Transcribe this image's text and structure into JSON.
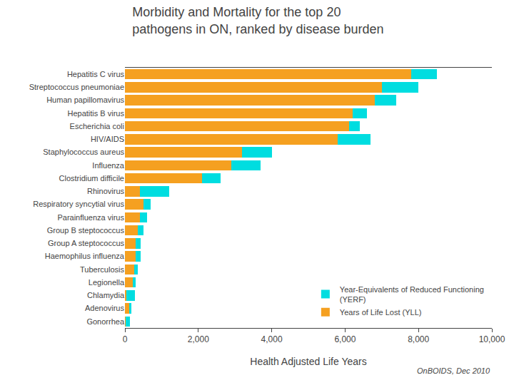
{
  "chart_data": {
    "type": "bar",
    "orientation": "horizontal",
    "stacked": true,
    "title": "Morbidity and Mortality for the top 20\npathogens in ON, ranked by disease burden",
    "xlabel": "Health Adjusted Life Years",
    "categories": [
      "Hepatitis C virus",
      "Streptococcus pneumoniae",
      "Human papillomavirus",
      "Hepatitis B virus",
      "Escherichia coli",
      "HIV/AIDS",
      "Staphylococcus aureus",
      "Influenza",
      "Clostridium difficile",
      "Rhinovirus",
      "Respiratory syncytial virus",
      "Parainfluenza virus",
      "Group B steptococcus",
      "Group A steptococcus",
      "Haemophilus influenza",
      "Tuberculosis",
      "Legionella",
      "Chlamydia",
      "Adenovirus",
      "Gonorrhea"
    ],
    "series": [
      {
        "name": "Years of Life Lost (YLL)",
        "color": "#f5a020",
        "values": [
          7800,
          7000,
          6800,
          6200,
          6100,
          5800,
          3200,
          2900,
          2100,
          400,
          500,
          400,
          350,
          300,
          300,
          250,
          220,
          30,
          120,
          10
        ]
      },
      {
        "name": "Year-Equivalents of Reduced Functioning\n(YERF)",
        "color": "#00dde0",
        "values": [
          700,
          1000,
          600,
          400,
          300,
          900,
          800,
          800,
          500,
          800,
          200,
          200,
          150,
          130,
          120,
          100,
          80,
          250,
          50,
          120
        ]
      }
    ],
    "xlim": [
      0,
      10000
    ],
    "xticks": [
      0,
      {
        "value": 2000,
        "label": "2,000"
      },
      {
        "value": 4000,
        "label": "4,000"
      },
      {
        "value": 6000,
        "label": "6,000"
      },
      {
        "value": 8000,
        "label": "8,000"
      },
      {
        "value": 10000,
        "label": "10,000"
      }
    ],
    "legend": "lower right",
    "grid": false,
    "annotations": [
      {
        "text": "OnBOIDS, Dec 2010"
      }
    ]
  }
}
